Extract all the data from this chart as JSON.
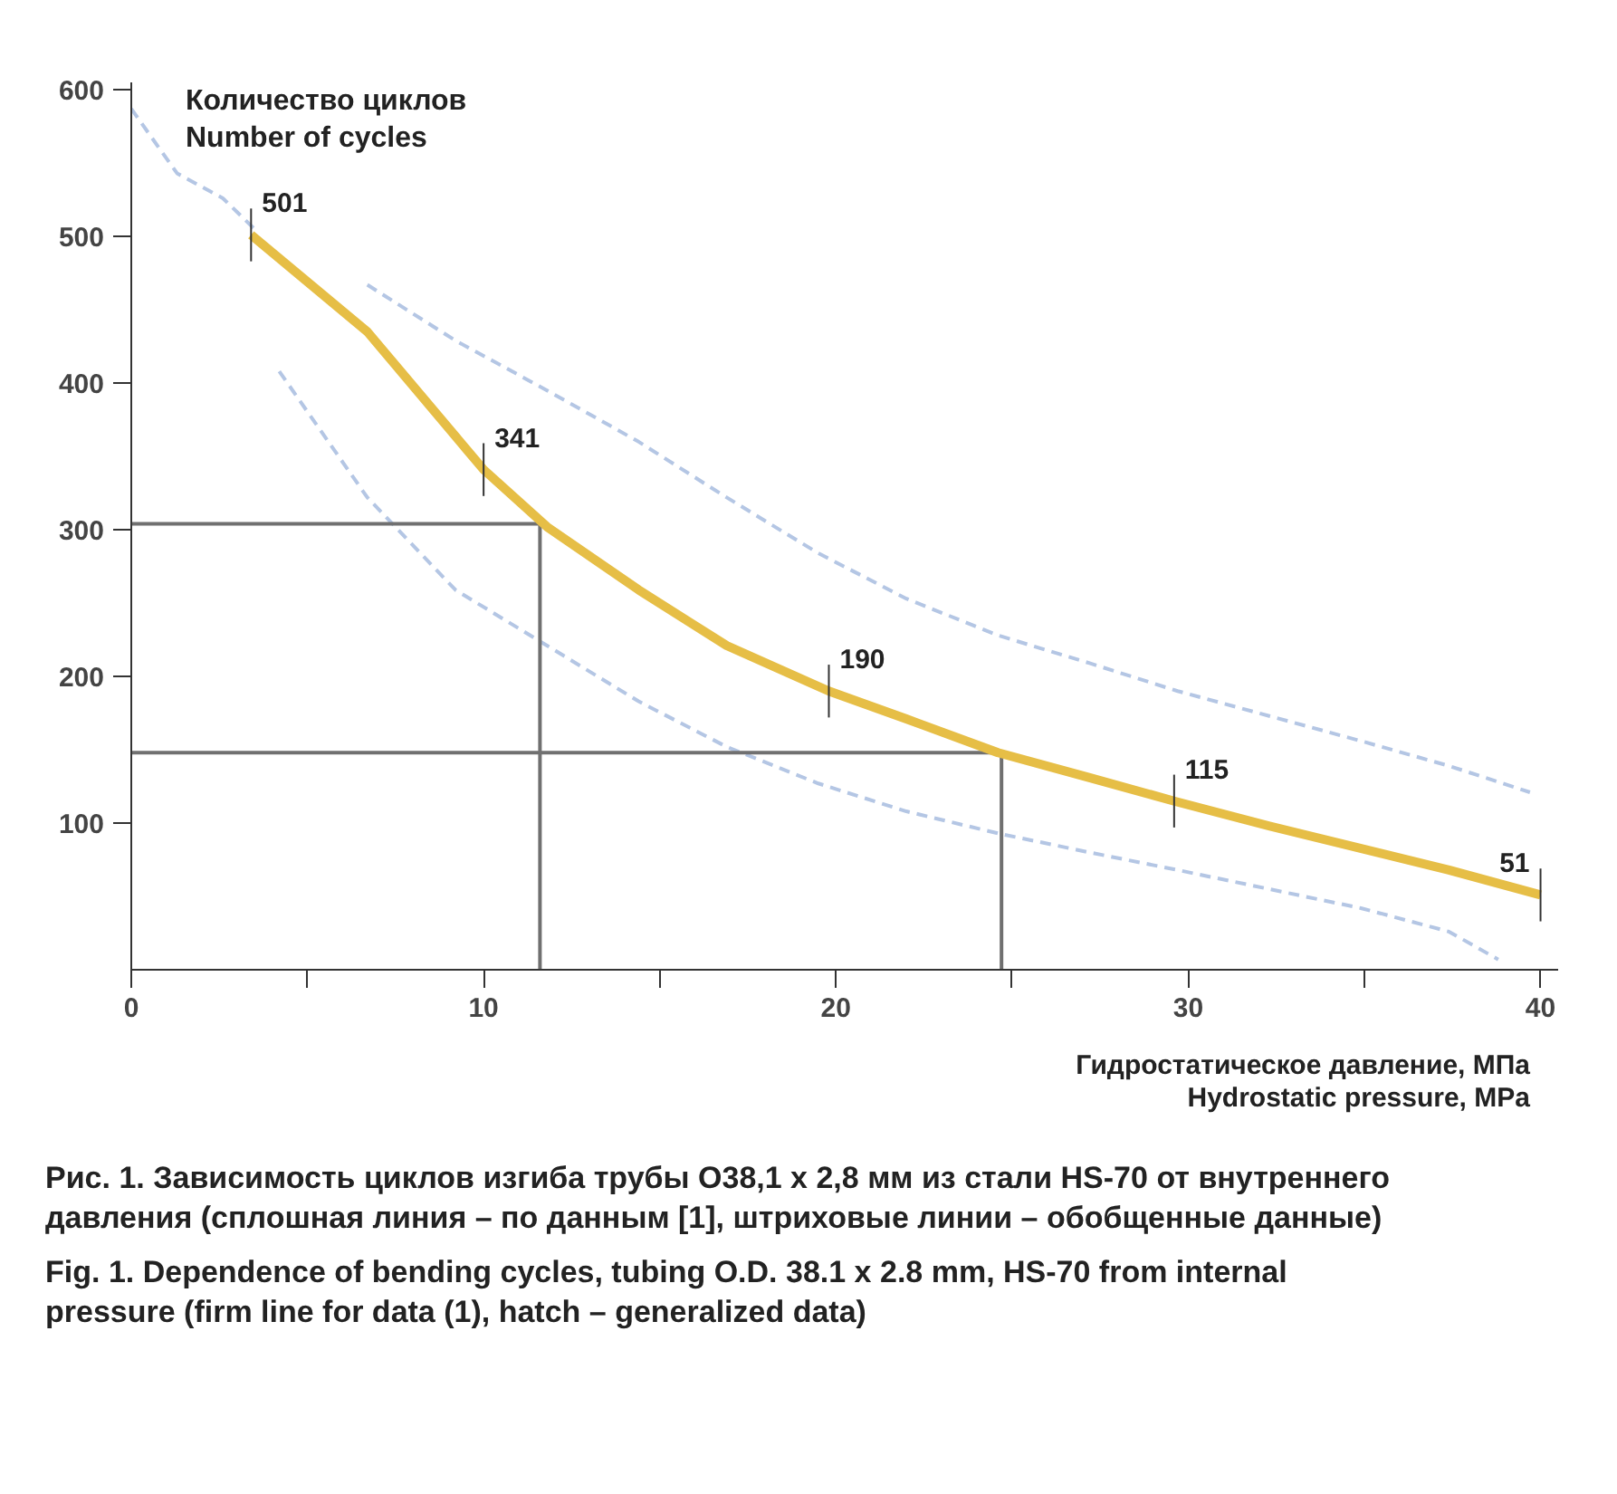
{
  "chart_data": {
    "type": "line",
    "xlabel": "Гидростатическое давление, МПа\nHydrostatic pressure, MPa",
    "ylabel": "Количество циклов\nNumber of cycles",
    "annotations": [
      "Рис. 1. Зависимость циклов изгиба трубы О38,1 х 2,8 мм из стали HS-70 от внутреннего давления (сплошная линия – по данным [1], штриховые линии – обобщенные данные)",
      "Fig. 1. Dependence of bending cycles, tubing O.D. 38.1 x 2.8 mm, HS-70 from internal pressure (firm line for data (1), hatch – generalized data)"
    ],
    "xlim": [
      0,
      40.5
    ],
    "ylim": [
      0,
      605
    ],
    "xticks": [
      0,
      10,
      20,
      30,
      40,
      {
        "value": 5,
        "label": null
      },
      {
        "value": 15,
        "label": null
      },
      {
        "value": 25,
        "label": null
      },
      {
        "value": 35,
        "label": null
      }
    ],
    "yticks": [
      100,
      200,
      300,
      400,
      500,
      600
    ],
    "grid": false,
    "series": [
      {
        "line_style": "dashed",
        "color": "#b4c6e4",
        "x": [
          0,
          1.3,
          2.6,
          3.5
        ],
        "values": [
          587,
          543,
          526,
          505
        ]
      },
      {
        "line_style": "dashed",
        "color": "#b4c6e4",
        "x": [
          6.7,
          9.2,
          11.8,
          14.4,
          16.9,
          19.5,
          22,
          24.6,
          27.2,
          29.7,
          32.3,
          34.9,
          37.4,
          39.7
        ],
        "values": [
          467,
          429,
          395,
          360,
          322,
          284,
          253,
          228,
          209,
          190,
          173,
          156,
          139,
          121
        ]
      },
      {
        "line_style": "dashed",
        "color": "#b4c6e4",
        "x": [
          4.2,
          6.7,
          9.2,
          11.8,
          14.4,
          16.9,
          19.5,
          22,
          24.6,
          27.2,
          29.7,
          32.3,
          34.9,
          37.4,
          38.8
        ],
        "values": [
          408,
          322,
          259,
          221,
          183,
          152,
          127,
          108,
          93,
          80,
          68,
          55,
          42,
          26,
          7
        ]
      },
      {
        "line_style": "solid",
        "color": "#707070",
        "x": [
          0,
          11.6,
          11.6
        ],
        "values": [
          304,
          304,
          0
        ]
      },
      {
        "line_style": "solid",
        "color": "#707070",
        "x": [
          0,
          24.7,
          24.7
        ],
        "values": [
          148,
          148,
          0
        ]
      },
      {
        "line_style": "solid",
        "color": "#e6be46",
        "x": [
          3.4,
          6.7,
          10,
          11.8,
          14.4,
          16.9,
          19.8,
          22,
          24.6,
          27.2,
          29.6,
          32.3,
          37.4,
          40
        ],
        "values": [
          501,
          435,
          341,
          302,
          259,
          221,
          190,
          171,
          148,
          131,
          115,
          98,
          68,
          51
        ],
        "value_labels": [
          "501",
          null,
          "341",
          null,
          null,
          null,
          "190",
          null,
          null,
          null,
          "115",
          null,
          null,
          "51"
        ]
      }
    ]
  }
}
